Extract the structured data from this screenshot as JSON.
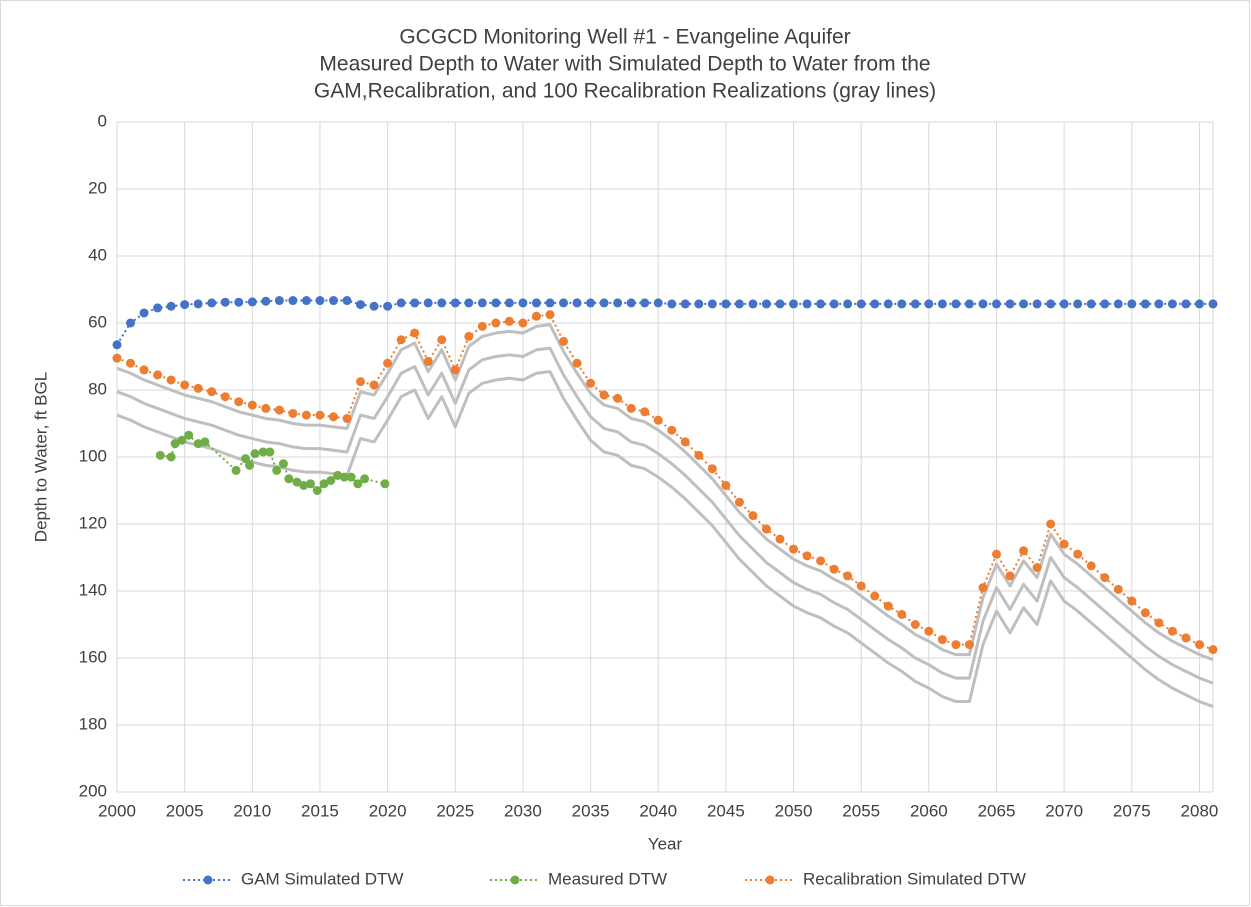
{
  "chart_data": {
    "type": "line",
    "title": "GCGCD Monitoring Well #1 - Evangeline Aquifer",
    "subtitle": [
      "Measured Depth to Water with Simulated Depth to Water from the",
      "GAM,Recalibration, and 100 Recalibration Realizations (gray lines)"
    ],
    "x_label": "Year",
    "y_label": "Depth to Water, ft BGL",
    "xlim": [
      2000,
      2081
    ],
    "xticks": [
      2000,
      2005,
      2010,
      2015,
      2020,
      2025,
      2030,
      2035,
      2040,
      2045,
      2050,
      2055,
      2060,
      2065,
      2070,
      2075,
      2080
    ],
    "ylim": [
      0,
      200
    ],
    "yticks": [
      0,
      20,
      40,
      60,
      80,
      100,
      120,
      140,
      160,
      180,
      200
    ],
    "y_inverted": true,
    "grid": true,
    "legend": "bottom",
    "x": [
      2000,
      2001,
      2002,
      2003,
      2004,
      2005,
      2006,
      2007,
      2008,
      2009,
      2010,
      2011,
      2012,
      2013,
      2014,
      2015,
      2016,
      2017,
      2018,
      2019,
      2020,
      2021,
      2022,
      2023,
      2024,
      2025,
      2026,
      2027,
      2028,
      2029,
      2030,
      2031,
      2032,
      2033,
      2034,
      2035,
      2036,
      2037,
      2038,
      2039,
      2040,
      2041,
      2042,
      2043,
      2044,
      2045,
      2046,
      2047,
      2048,
      2049,
      2050,
      2051,
      2052,
      2053,
      2054,
      2055,
      2056,
      2057,
      2058,
      2059,
      2060,
      2061,
      2062,
      2063,
      2064,
      2065,
      2066,
      2067,
      2068,
      2069,
      2070,
      2071,
      2072,
      2073,
      2074,
      2075,
      2076,
      2077,
      2078,
      2079,
      2080,
      2081
    ],
    "realizations": [
      {
        "color": "#bfbfbf",
        "values": [
          73.5,
          75,
          77,
          78.5,
          80,
          81.5,
          82.5,
          83.5,
          85,
          86.5,
          87.5,
          88.5,
          89,
          90,
          90.5,
          90.5,
          91,
          91.5,
          80.5,
          81.5,
          75,
          68,
          66,
          74.5,
          68,
          77,
          67,
          64,
          63,
          62.5,
          63,
          61,
          60.5,
          68.5,
          75,
          81,
          84.5,
          85.5,
          88.5,
          89.5,
          92,
          95,
          98.5,
          102.5,
          106.5,
          111.5,
          116.5,
          120.5,
          124.5,
          127.5,
          130.5,
          132.5,
          134,
          136.5,
          138.5,
          141.5,
          144.5,
          147.5,
          150,
          153,
          155,
          157.5,
          159,
          159,
          142,
          132,
          138.5,
          131,
          136,
          123,
          129,
          132,
          135.5,
          139,
          142.5,
          146,
          149.5,
          152.5,
          155,
          157,
          159,
          160.5
        ]
      },
      {
        "color": "#bfbfbf",
        "values": [
          80.5,
          82,
          84,
          85.5,
          87,
          88.5,
          89.5,
          90.5,
          92,
          93.5,
          94.5,
          95.5,
          96,
          97,
          97.5,
          97.5,
          98,
          98.5,
          87.5,
          88.5,
          82,
          75,
          73,
          81.5,
          75,
          84,
          74,
          71,
          70,
          69.5,
          70,
          68,
          67.5,
          75.5,
          82,
          88,
          91.5,
          92.5,
          95.5,
          96.5,
          99,
          102,
          105.5,
          109.5,
          113.5,
          118.5,
          123.5,
          127.5,
          131.5,
          134.5,
          137.5,
          139.5,
          141,
          143.5,
          145.5,
          148.5,
          151.5,
          154.5,
          157,
          160,
          162,
          164.5,
          166,
          166,
          149,
          139,
          145.5,
          138,
          143,
          130,
          136,
          139,
          142.5,
          146,
          149.5,
          153,
          156.5,
          159.5,
          162,
          164,
          166,
          167.5
        ]
      },
      {
        "color": "#bfbfbf",
        "values": [
          87.5,
          89,
          91,
          92.5,
          94,
          95.5,
          96.5,
          97.5,
          99,
          100.5,
          101.5,
          102.5,
          103,
          104,
          104.5,
          104.5,
          105,
          105.5,
          94.5,
          95.5,
          89,
          82,
          80,
          88.5,
          82,
          91,
          81,
          78,
          77,
          76.5,
          77,
          75,
          74.5,
          82.5,
          89,
          95,
          98.5,
          99.5,
          102.5,
          103.5,
          106,
          109,
          112.5,
          116.5,
          120.5,
          125.5,
          130.5,
          134.5,
          138.5,
          141.5,
          144.5,
          146.5,
          148,
          150.5,
          152.5,
          155.5,
          158.5,
          161.5,
          164,
          167,
          169,
          171.5,
          173,
          173,
          156,
          146,
          152.5,
          145,
          150,
          137,
          143,
          146,
          149.5,
          153,
          156.5,
          160,
          163.5,
          166.5,
          169,
          171,
          173,
          174.5
        ]
      }
    ],
    "series": [
      {
        "name": "GAM Simulated DTW",
        "color": "#4472c4",
        "values": [
          66.5,
          60,
          57,
          55.5,
          55,
          54.5,
          54.3,
          54,
          53.8,
          53.8,
          53.7,
          53.5,
          53.3,
          53.3,
          53.3,
          53.3,
          53.3,
          53.3,
          54.5,
          55,
          55,
          54,
          54,
          54,
          54,
          54,
          54,
          54,
          54,
          54,
          54,
          54,
          54,
          54,
          54,
          54,
          54,
          54,
          54,
          54,
          54,
          54.3,
          54.3,
          54.3,
          54.3,
          54.3,
          54.3,
          54.3,
          54.3,
          54.3,
          54.3,
          54.3,
          54.3,
          54.3,
          54.3,
          54.3,
          54.3,
          54.3,
          54.3,
          54.3,
          54.3,
          54.3,
          54.3,
          54.3,
          54.3,
          54.3,
          54.3,
          54.3,
          54.3,
          54.3,
          54.3,
          54.3,
          54.3,
          54.3,
          54.3,
          54.3,
          54.3,
          54.3,
          54.3,
          54.3,
          54.3,
          54.3
        ]
      },
      {
        "name": "Measured DTW",
        "color": "#70ad47",
        "x": [
          2003.2,
          2004,
          2004.3,
          2004.8,
          2005.3,
          2006,
          2006.5,
          2008.8,
          2009.5,
          2009.8,
          2010.2,
          2010.8,
          2011.3,
          2011.8,
          2012.3,
          2012.7,
          2013.3,
          2013.8,
          2014.3,
          2014.8,
          2015.3,
          2015.8,
          2016.3,
          2016.8,
          2017.3,
          2017.8,
          2018.3,
          2019.8
        ],
        "values": [
          99.5,
          100,
          96,
          95,
          93.5,
          96,
          95.5,
          104,
          100.5,
          102.5,
          99,
          98.5,
          98.5,
          104,
          102,
          106.5,
          107.5,
          108.5,
          108,
          110,
          108,
          107,
          105.5,
          106,
          106,
          108,
          106.5,
          108
        ]
      },
      {
        "name": "Recalibration Simulated DTW",
        "color": "#ed7d31",
        "values": [
          70.5,
          72,
          74,
          75.5,
          77,
          78.5,
          79.5,
          80.5,
          82,
          83.5,
          84.5,
          85.5,
          86,
          87,
          87.5,
          87.5,
          88,
          88.5,
          77.5,
          78.5,
          72,
          65,
          63,
          71.5,
          65,
          74,
          64,
          61,
          60,
          59.5,
          60,
          58,
          57.5,
          65.5,
          72,
          78,
          81.5,
          82.5,
          85.5,
          86.5,
          89,
          92,
          95.5,
          99.5,
          103.5,
          108.5,
          113.5,
          117.5,
          121.5,
          124.5,
          127.5,
          129.5,
          131,
          133.5,
          135.5,
          138.5,
          141.5,
          144.5,
          147,
          150,
          152,
          154.5,
          156,
          156,
          139,
          129,
          135.5,
          128,
          133,
          120,
          126,
          129,
          132.5,
          136,
          139.5,
          143,
          146.5,
          149.5,
          152,
          154,
          156,
          157.5
        ]
      }
    ]
  }
}
